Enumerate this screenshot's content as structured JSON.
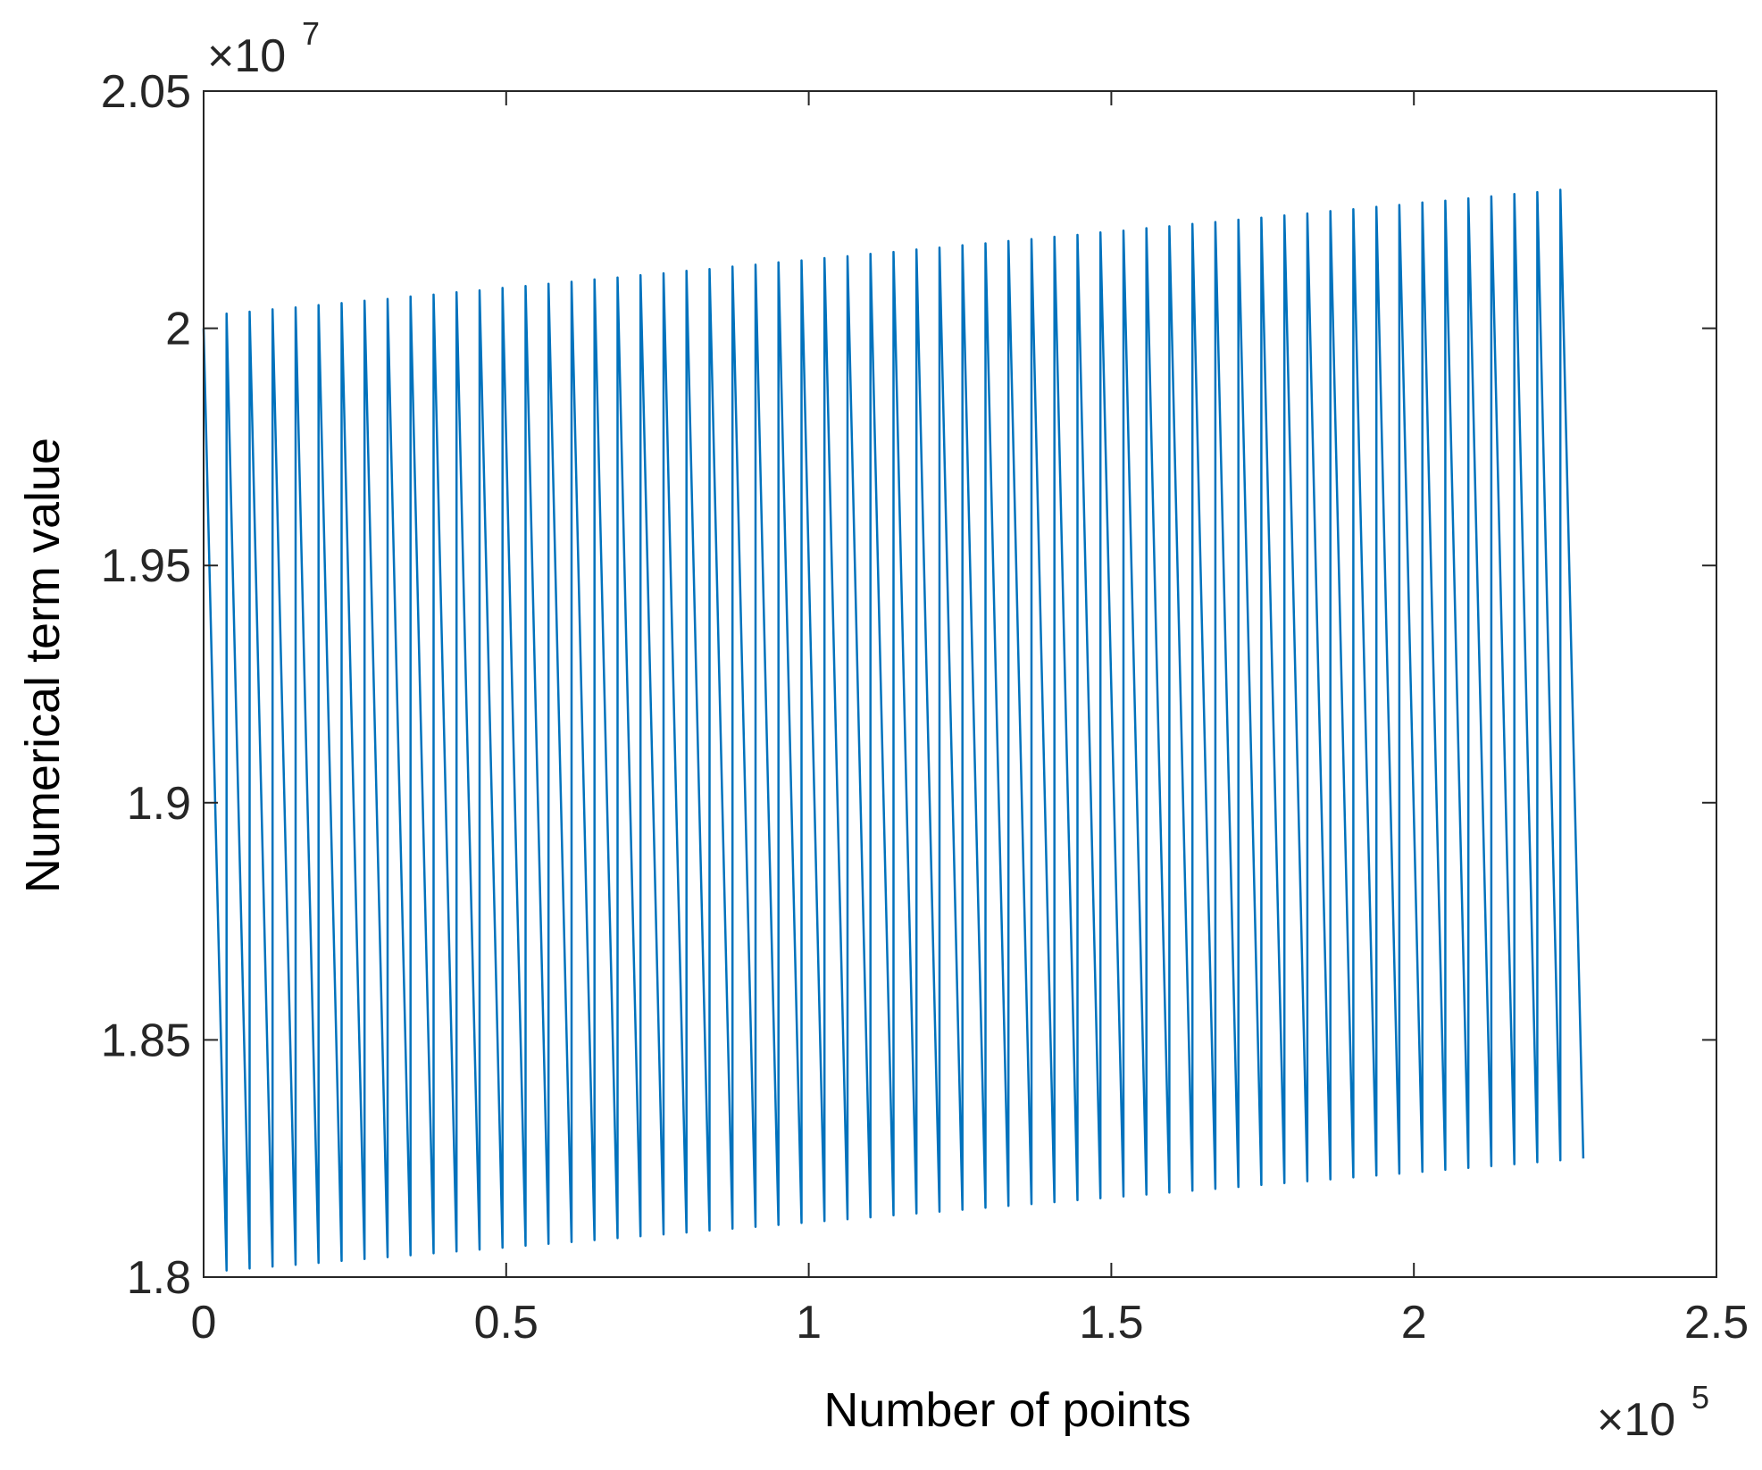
{
  "chart_data": {
    "type": "line",
    "xlabel": "Number of points",
    "ylabel": "Numerical term value",
    "x_multiplier": "×10",
    "x_exponent": "5",
    "y_multiplier": "×10",
    "y_exponent": "7",
    "xlim": [
      0,
      2.5
    ],
    "ylim": [
      1.8,
      2.05
    ],
    "x_ticks": [
      0,
      0.5,
      1,
      1.5,
      2,
      2.5
    ],
    "y_ticks": [
      1.8,
      1.85,
      1.9,
      1.95,
      2,
      2.05
    ],
    "x_tick_labels": [
      "0",
      "0.5",
      "1",
      "1.5",
      "2",
      "2.5"
    ],
    "y_tick_labels": [
      "1.8",
      "1.85",
      "1.9",
      "1.95",
      "2",
      "2.05"
    ],
    "grid": false,
    "line_color": "#0072BD",
    "series": [
      {
        "x": [
          0,
          0.038,
          0.038,
          0.076,
          0.076,
          0.114,
          0.114,
          0.152,
          0.152,
          0.19,
          0.19,
          0.228,
          0.228,
          0.266,
          0.266,
          0.304,
          0.304,
          0.342,
          0.342,
          0.38,
          0.38,
          0.418,
          0.418,
          0.456,
          0.456,
          0.494,
          0.494,
          0.532,
          0.532,
          0.57,
          0.57,
          0.608,
          0.608,
          0.646,
          0.646,
          0.684,
          0.684,
          0.722,
          0.722,
          0.76,
          0.76,
          0.798,
          0.798,
          0.836,
          0.836,
          0.874,
          0.874,
          0.912,
          0.912,
          0.95,
          0.95,
          0.988,
          0.988,
          1.026,
          1.026,
          1.064,
          1.064,
          1.102,
          1.102,
          1.14,
          1.14,
          1.178,
          1.178,
          1.216,
          1.216,
          1.254,
          1.254,
          1.292,
          1.292,
          1.33,
          1.33,
          1.368,
          1.368,
          1.406,
          1.406,
          1.444,
          1.444,
          1.482,
          1.482,
          1.52,
          1.52,
          1.558,
          1.558,
          1.596,
          1.596,
          1.634,
          1.634,
          1.672,
          1.672,
          1.71,
          1.71,
          1.748,
          1.748,
          1.786,
          1.786,
          1.824,
          1.824,
          1.862,
          1.862,
          1.9,
          1.9,
          1.938,
          1.938,
          1.976,
          1.976,
          2.014,
          2.014,
          2.052,
          2.052,
          2.09,
          2.09,
          2.128,
          2.128,
          2.166,
          2.166,
          2.204,
          2.204,
          2.242,
          2.242,
          2.28
        ],
        "y": [
          2.0,
          1.8014,
          2.0031,
          1.8018,
          2.0035,
          1.8022,
          2.004,
          1.8026,
          2.0044,
          1.803,
          2.0049,
          1.8034,
          2.0053,
          1.8038,
          2.0058,
          1.8042,
          2.0062,
          1.8046,
          2.0067,
          1.805,
          2.0071,
          1.8054,
          2.0076,
          1.8058,
          2.008,
          1.8062,
          2.0085,
          1.8066,
          2.0089,
          1.807,
          2.0094,
          1.8074,
          2.0098,
          1.8078,
          2.0103,
          1.8082,
          2.0107,
          1.8086,
          2.0112,
          1.809,
          2.0116,
          1.8094,
          2.0121,
          1.8098,
          2.0125,
          1.8102,
          2.013,
          1.8106,
          2.0134,
          1.811,
          2.0139,
          1.8114,
          2.0143,
          1.8118,
          2.0148,
          1.8122,
          2.0152,
          1.8126,
          2.0157,
          1.813,
          2.0161,
          1.8134,
          2.0166,
          1.8138,
          2.017,
          1.8142,
          2.0175,
          1.8146,
          2.0179,
          1.815,
          2.0184,
          1.8154,
          2.0188,
          1.8158,
          2.0193,
          1.8162,
          2.0197,
          1.8166,
          2.0202,
          1.817,
          2.0206,
          1.8174,
          2.0211,
          1.8178,
          2.0215,
          1.8182,
          2.022,
          1.8186,
          2.0224,
          1.819,
          2.0229,
          1.8194,
          2.0233,
          1.8198,
          2.0238,
          1.8202,
          2.0242,
          1.8206,
          2.0247,
          1.821,
          2.0251,
          1.8214,
          2.0256,
          1.8218,
          2.026,
          1.8222,
          2.0265,
          1.8226,
          2.0269,
          1.823,
          2.0274,
          1.8234,
          2.0278,
          1.8238,
          2.0283,
          1.8242,
          2.0287,
          1.8246,
          2.0292,
          1.825
        ]
      }
    ]
  }
}
